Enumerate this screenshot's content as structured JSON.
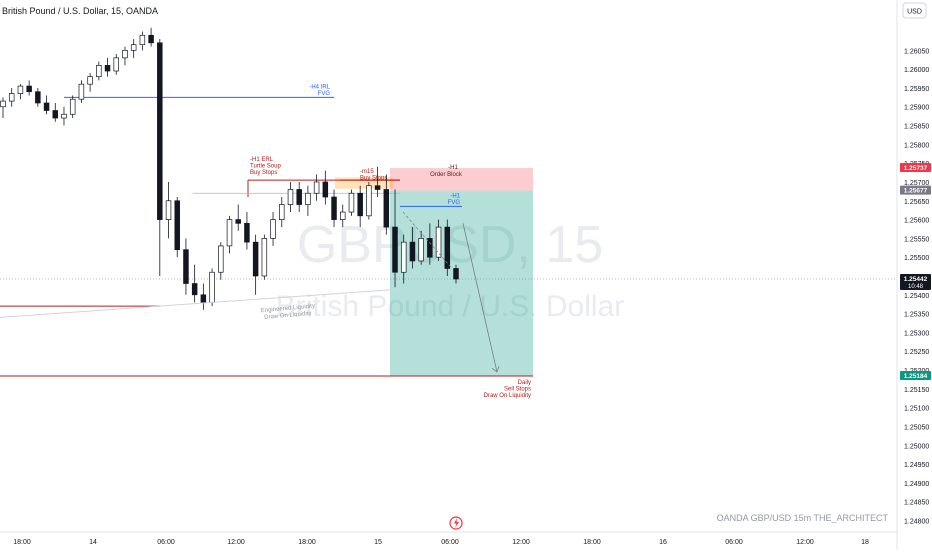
{
  "header": {
    "title": "British Pound / U.S. Dollar, 15, OANDA",
    "currency": "USD"
  },
  "watermark": {
    "symbol": "GBPUSD, 15",
    "description": "British Pound / U.S. Dollar"
  },
  "footer": {
    "brand": "OANDA  GBP/USD 15m  THE_ARCHITECT"
  },
  "colors": {
    "up": "#089981",
    "down": "#f23645",
    "candle": "#131722",
    "blue": "#2962ff",
    "red": "#b71c1c",
    "axis_text": "#131722",
    "grid": "#f0f3fa"
  },
  "chart_data": {
    "type": "candlestick",
    "symbol": "GBP/USD",
    "timeframe": "15",
    "source": "OANDA",
    "ylim": [
      1.2478,
      1.2612
    ],
    "y_ticks": [
      "1.26050",
      "1.26000",
      "1.25950",
      "1.25900",
      "1.25850",
      "1.25800",
      "1.25750",
      "1.25700",
      "1.25650",
      "1.25600",
      "1.25550",
      "1.25500",
      "1.25450",
      "1.25400",
      "1.25350",
      "1.25300",
      "1.25250",
      "1.25200",
      "1.25150",
      "1.25100",
      "1.25050",
      "1.25000",
      "1.24950",
      "1.24900",
      "1.24850",
      "1.24800"
    ],
    "x_ticks": [
      "18:00",
      "14",
      "06:00",
      "12:00",
      "18:00",
      "15",
      "06:00",
      "12:00",
      "18:00",
      "16",
      "06:00",
      "12:00",
      "18"
    ],
    "ohlc": [
      [
        1.259,
        1.25925,
        1.2587,
        1.25915
      ],
      [
        1.25915,
        1.2595,
        1.259,
        1.25935
      ],
      [
        1.25935,
        1.2596,
        1.2592,
        1.25955
      ],
      [
        1.25955,
        1.2597,
        1.2593,
        1.2594
      ],
      [
        1.2594,
        1.2595,
        1.259,
        1.2591
      ],
      [
        1.2591,
        1.2593,
        1.2588,
        1.2589
      ],
      [
        1.2589,
        1.2591,
        1.2586,
        1.2587
      ],
      [
        1.2587,
        1.259,
        1.2585,
        1.2588
      ],
      [
        1.2588,
        1.2593,
        1.2587,
        1.2592
      ],
      [
        1.2592,
        1.2597,
        1.2591,
        1.2596
      ],
      [
        1.2596,
        1.2599,
        1.2594,
        1.2598
      ],
      [
        1.2598,
        1.2602,
        1.2597,
        1.2601
      ],
      [
        1.2601,
        1.2603,
        1.2598,
        1.25995
      ],
      [
        1.25995,
        1.2604,
        1.25985,
        1.2603
      ],
      [
        1.2603,
        1.2606,
        1.2601,
        1.2605
      ],
      [
        1.2605,
        1.2608,
        1.2603,
        1.26065
      ],
      [
        1.26065,
        1.261,
        1.2605,
        1.2609
      ],
      [
        1.2609,
        1.2611,
        1.2606,
        1.2607
      ],
      [
        1.2607,
        1.2608,
        1.2545,
        1.256
      ],
      [
        1.256,
        1.257,
        1.2555,
        1.2565
      ],
      [
        1.2565,
        1.2566,
        1.255,
        1.2552
      ],
      [
        1.2552,
        1.2555,
        1.254,
        1.2543
      ],
      [
        1.2543,
        1.2548,
        1.2538,
        1.254
      ],
      [
        1.254,
        1.2543,
        1.2536,
        1.2538
      ],
      [
        1.2538,
        1.2547,
        1.2537,
        1.2546
      ],
      [
        1.2546,
        1.2554,
        1.2544,
        1.2553
      ],
      [
        1.2553,
        1.2561,
        1.2551,
        1.256
      ],
      [
        1.256,
        1.2564,
        1.2557,
        1.2559
      ],
      [
        1.2559,
        1.2562,
        1.2552,
        1.2554
      ],
      [
        1.2554,
        1.2556,
        1.254,
        1.2545
      ],
      [
        1.2545,
        1.2556,
        1.2544,
        1.2555
      ],
      [
        1.2555,
        1.2562,
        1.2553,
        1.256
      ],
      [
        1.256,
        1.2566,
        1.2558,
        1.2564
      ],
      [
        1.2564,
        1.257,
        1.2562,
        1.2568
      ],
      [
        1.2568,
        1.257,
        1.2562,
        1.2564
      ],
      [
        1.2564,
        1.2569,
        1.2561,
        1.2567
      ],
      [
        1.2567,
        1.2572,
        1.2565,
        1.257
      ],
      [
        1.257,
        1.2573,
        1.2564,
        1.2566
      ],
      [
        1.2566,
        1.2568,
        1.2558,
        1.256
      ],
      [
        1.256,
        1.2564,
        1.2558,
        1.2562
      ],
      [
        1.2562,
        1.2568,
        1.2561,
        1.2567
      ],
      [
        1.2567,
        1.2569,
        1.2558,
        1.2561
      ],
      [
        1.2561,
        1.257,
        1.256,
        1.2569
      ],
      [
        1.2569,
        1.2574,
        1.2566,
        1.2568
      ],
      [
        1.2568,
        1.2572,
        1.2556,
        1.2558
      ],
      [
        1.2558,
        1.2568,
        1.2542,
        1.2546
      ],
      [
        1.2546,
        1.2556,
        1.2543,
        1.2554
      ],
      [
        1.2554,
        1.2558,
        1.2547,
        1.2549
      ],
      [
        1.2549,
        1.2557,
        1.2548,
        1.2555
      ],
      [
        1.2555,
        1.2559,
        1.2548,
        1.255
      ],
      [
        1.255,
        1.256,
        1.2549,
        1.2558
      ],
      [
        1.2558,
        1.256,
        1.2545,
        1.2547
      ],
      [
        1.2547,
        1.2548,
        1.2543,
        1.25442
      ]
    ],
    "levels": [
      {
        "price": 1.25925,
        "label": "-H4 IRL\nFVG",
        "color": "blue"
      },
      {
        "price": 1.25705,
        "label": "-H1 ERL\nTurtle Soup\nBuy Stops",
        "color": "red"
      },
      {
        "price": 1.25705,
        "label": "-m15\nBuy Stops",
        "color": "red"
      },
      {
        "price": 1.25635,
        "label": "-H1\nFVG",
        "color": "blue"
      },
      {
        "price": 1.2537,
        "label": "",
        "color": "red"
      },
      {
        "price": 1.25184,
        "label": "Daily\nSell Stops\nDraw On Liquidity",
        "color": "red"
      }
    ],
    "zones": [
      {
        "label": "-H1\nOrder Block",
        "top": 1.25737,
        "bottom": 1.25677
      },
      {
        "label": "",
        "top": 1.25677,
        "bottom": 1.25184,
        "kind": "short-target"
      }
    ],
    "annotations": [
      {
        "text": "Engineered Liquidity\nDraw On Liquidity"
      }
    ],
    "price_labels": [
      {
        "price": 1.25737,
        "text": "1.25737",
        "color": "#f23645"
      },
      {
        "price": 1.25677,
        "text": "1.25677",
        "color": "#787b86"
      },
      {
        "price": 1.25442,
        "text": "1.25442",
        "sub": "10:48",
        "color": "#131722"
      },
      {
        "price": 1.25184,
        "text": "1.25184",
        "color": "#089981"
      }
    ]
  }
}
